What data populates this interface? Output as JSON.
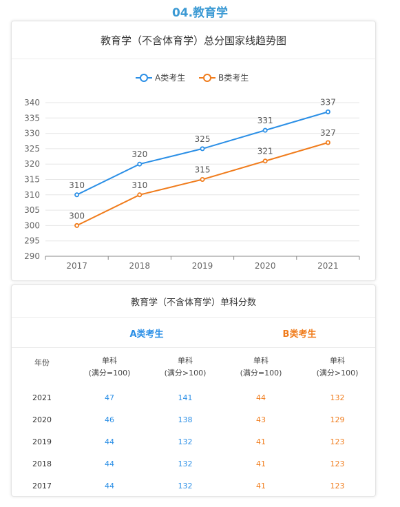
{
  "section_title": "04.教育学",
  "colors": {
    "a": "#2b8fe6",
    "b": "#f07c1c",
    "title": "#3c9ad4"
  },
  "chart_data": {
    "type": "line",
    "title": "教育学（不含体育学）总分国家线趋势图",
    "categories": [
      "2017",
      "2018",
      "2019",
      "2020",
      "2021"
    ],
    "series": [
      {
        "name": "A类考生",
        "values": [
          310,
          320,
          325,
          331,
          337
        ]
      },
      {
        "name": "B类考生",
        "values": [
          300,
          310,
          315,
          321,
          327
        ]
      }
    ],
    "ylim": [
      290,
      340
    ],
    "yticks": [
      290,
      295,
      300,
      305,
      310,
      315,
      320,
      325,
      330,
      335,
      340
    ],
    "grid": true,
    "legend": "top-center"
  },
  "table": {
    "title": "教育学（不含体育学）单科分数",
    "group_a": "A类考生",
    "group_b": "B类考生",
    "year_header": "年份",
    "col_headers": [
      {
        "line1": "单科",
        "line2": "(满分=100)"
      },
      {
        "line1": "单科",
        "line2": "(满分>100)"
      },
      {
        "line1": "单科",
        "line2": "(满分=100)"
      },
      {
        "line1": "单科",
        "line2": "(满分>100)"
      }
    ],
    "rows": [
      {
        "year": "2021",
        "a100": "47",
        "a_over": "141",
        "b100": "44",
        "b_over": "132"
      },
      {
        "year": "2020",
        "a100": "46",
        "a_over": "138",
        "b100": "43",
        "b_over": "129"
      },
      {
        "year": "2019",
        "a100": "44",
        "a_over": "132",
        "b100": "41",
        "b_over": "123"
      },
      {
        "year": "2018",
        "a100": "44",
        "a_over": "132",
        "b100": "41",
        "b_over": "123"
      },
      {
        "year": "2017",
        "a100": "44",
        "a_over": "132",
        "b100": "41",
        "b_over": "123"
      }
    ]
  }
}
